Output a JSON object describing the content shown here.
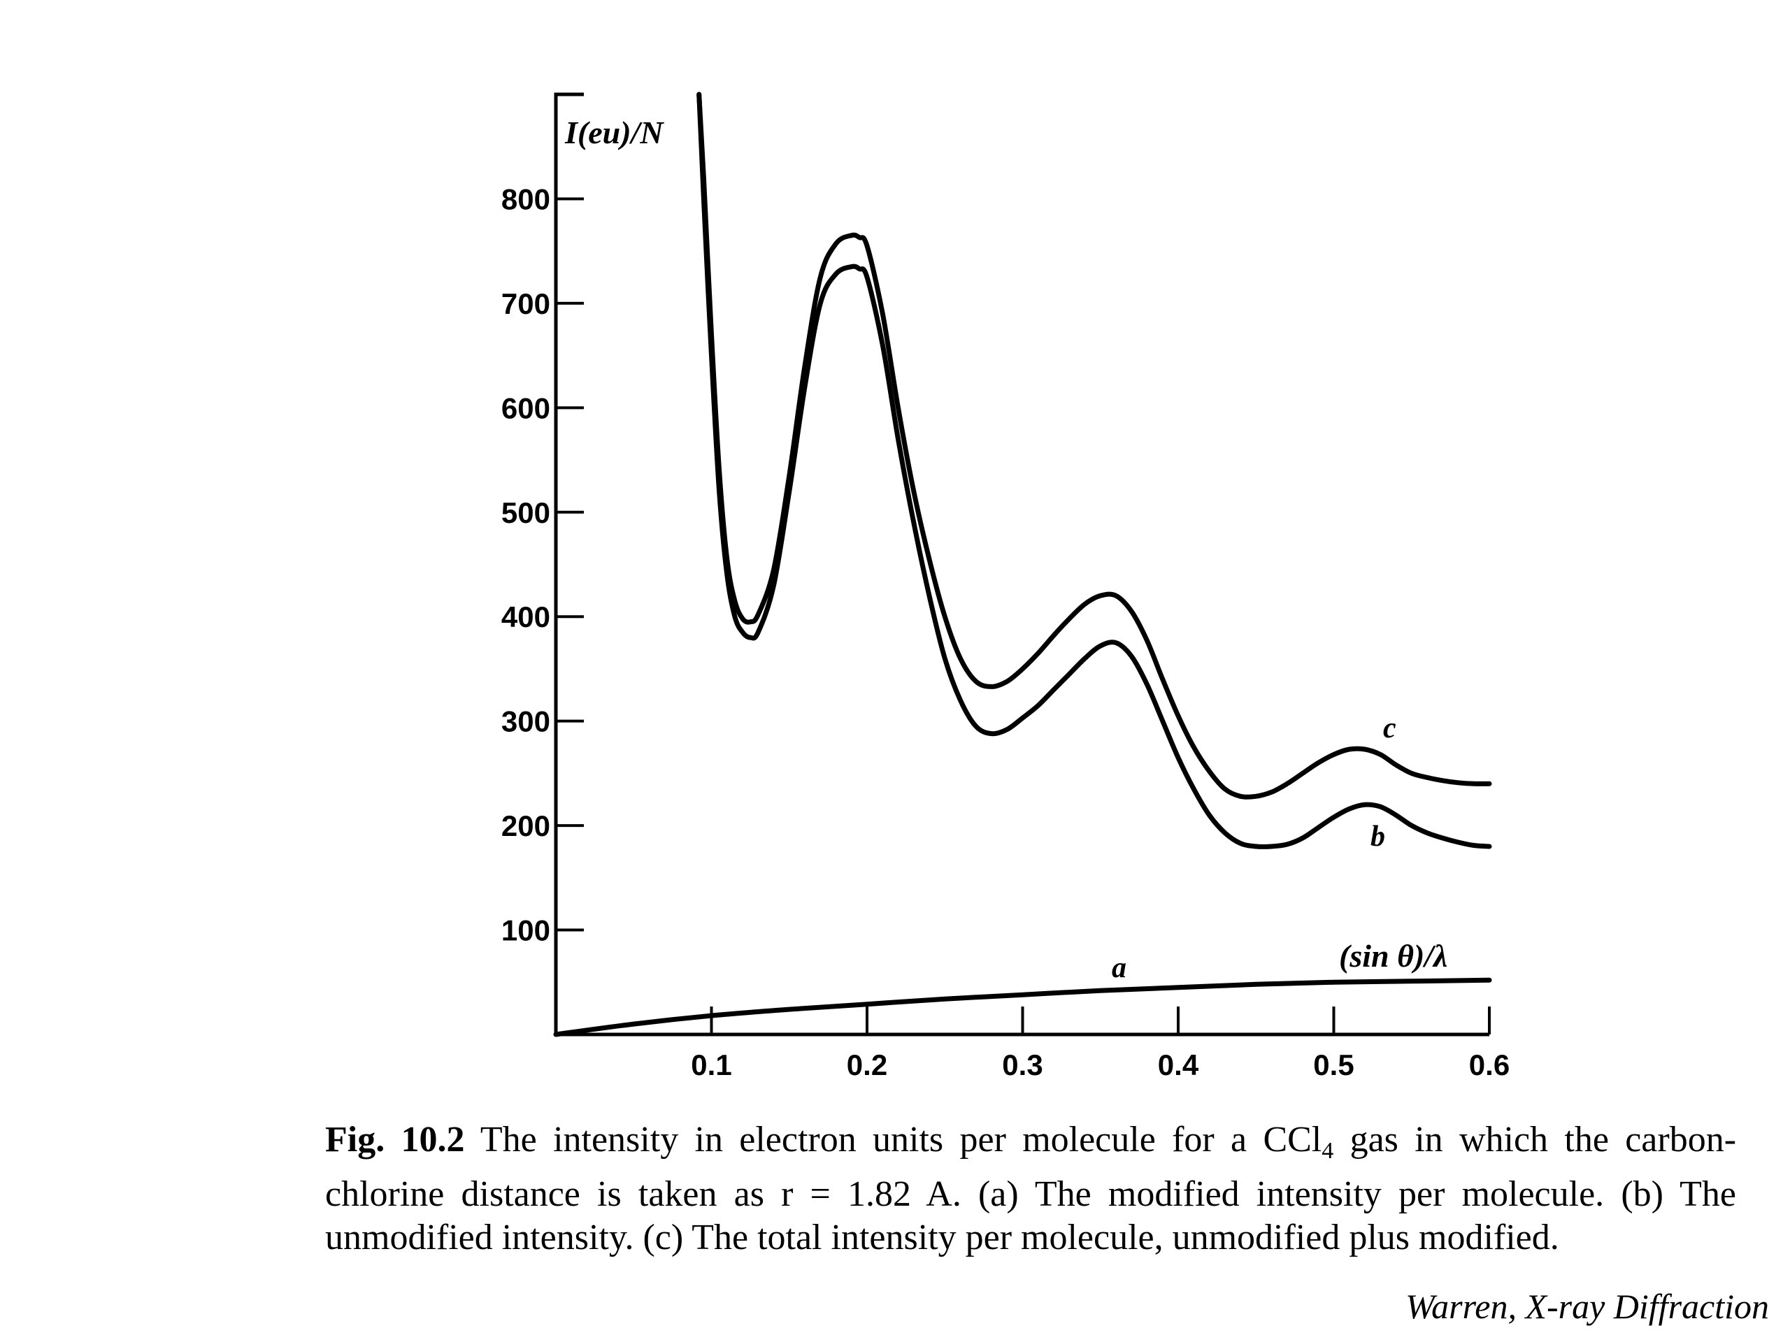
{
  "chart_data": {
    "type": "line",
    "ylabel": "I(eu)/N",
    "xlabel": "(sin θ)/λ",
    "xlim": [
      0,
      0.6
    ],
    "ylim": [
      0,
      900
    ],
    "x_ticks": [
      0.1,
      0.2,
      0.3,
      0.4,
      0.5,
      0.6
    ],
    "x_tick_labels": [
      "0.1",
      "0.2",
      "0.3",
      "0.4",
      "0.5",
      "0.6"
    ],
    "y_ticks": [
      100,
      200,
      300,
      400,
      500,
      600,
      700,
      800
    ],
    "y_tick_labels": [
      "100",
      "200",
      "300",
      "400",
      "500",
      "600",
      "700",
      "800"
    ],
    "grid": false,
    "series": [
      {
        "name": "a",
        "x": [
          0,
          0.05,
          0.1,
          0.15,
          0.2,
          0.25,
          0.3,
          0.35,
          0.4,
          0.45,
          0.5,
          0.55,
          0.6
        ],
        "values": [
          0,
          10,
          18,
          24,
          29,
          34,
          38,
          42,
          45,
          48,
          50,
          51,
          52
        ]
      },
      {
        "name": "b",
        "x": [
          0.092,
          0.095,
          0.1,
          0.105,
          0.11,
          0.115,
          0.12,
          0.125,
          0.13,
          0.14,
          0.15,
          0.16,
          0.17,
          0.18,
          0.19,
          0.195,
          0.2,
          0.21,
          0.22,
          0.23,
          0.24,
          0.25,
          0.26,
          0.27,
          0.28,
          0.29,
          0.3,
          0.31,
          0.32,
          0.33,
          0.34,
          0.35,
          0.36,
          0.37,
          0.38,
          0.39,
          0.4,
          0.41,
          0.42,
          0.43,
          0.44,
          0.45,
          0.46,
          0.47,
          0.48,
          0.49,
          0.5,
          0.51,
          0.52,
          0.53,
          0.54,
          0.55,
          0.56,
          0.57,
          0.58,
          0.59,
          0.6
        ],
        "values": [
          900,
          800,
          650,
          520,
          440,
          400,
          385,
          380,
          385,
          430,
          520,
          620,
          700,
          728,
          735,
          733,
          725,
          660,
          570,
          490,
          420,
          360,
          320,
          295,
          288,
          292,
          303,
          315,
          330,
          345,
          360,
          372,
          375,
          362,
          335,
          300,
          265,
          235,
          210,
          193,
          183,
          180,
          180,
          182,
          188,
          198,
          208,
          216,
          220,
          218,
          210,
          200,
          193,
          188,
          184,
          181,
          180
        ]
      },
      {
        "name": "c",
        "x": [
          0.092,
          0.095,
          0.1,
          0.105,
          0.11,
          0.115,
          0.12,
          0.125,
          0.13,
          0.14,
          0.15,
          0.16,
          0.17,
          0.18,
          0.19,
          0.195,
          0.2,
          0.21,
          0.22,
          0.23,
          0.24,
          0.25,
          0.26,
          0.27,
          0.28,
          0.29,
          0.3,
          0.31,
          0.32,
          0.33,
          0.34,
          0.35,
          0.36,
          0.37,
          0.38,
          0.39,
          0.4,
          0.41,
          0.42,
          0.43,
          0.44,
          0.45,
          0.46,
          0.47,
          0.48,
          0.49,
          0.5,
          0.51,
          0.52,
          0.53,
          0.54,
          0.55,
          0.56,
          0.57,
          0.58,
          0.59,
          0.6
        ],
        "values": [
          900,
          820,
          670,
          540,
          455,
          415,
          398,
          395,
          402,
          445,
          535,
          640,
          725,
          757,
          765,
          763,
          755,
          690,
          600,
          520,
          455,
          400,
          360,
          338,
          333,
          338,
          350,
          365,
          382,
          398,
          412,
          420,
          420,
          405,
          377,
          340,
          305,
          275,
          252,
          235,
          228,
          228,
          232,
          240,
          250,
          260,
          268,
          273,
          273,
          268,
          258,
          250,
          246,
          243,
          241,
          240,
          240
        ]
      }
    ],
    "curve_labels": [
      "a",
      "b",
      "c"
    ]
  },
  "caption": {
    "fig_number": "Fig. 10.2",
    "text_before_sub": "The intensity in electron units per molecule for a CCl",
    "subscript": "4",
    "text_after_sub": " gas in which the carbon-chlorine distance is taken as r = 1.82 A.  (a) The modified intensity per molecule.  (b) The unmodified intensity.  (c) The total intensity per molecule, unmodified plus modified."
  },
  "credit": "Warren,  X-ray Diffraction"
}
